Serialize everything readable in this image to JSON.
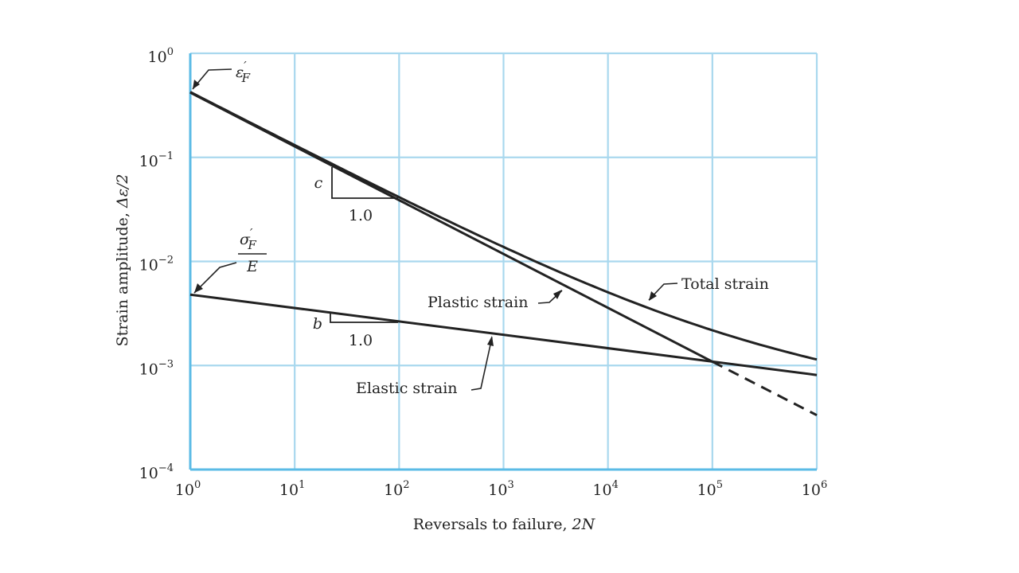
{
  "chart_data": {
    "type": "line",
    "x_scale": "log",
    "y_scale": "log",
    "xlim": [
      1,
      1000000
    ],
    "ylim": [
      0.0001,
      1
    ],
    "grid": true,
    "xlabel_text": "Reversals to failure, ",
    "xlabel_var": "2N",
    "ylabel_text": "Strain amplitude, ",
    "ylabel_var": "Δε/2",
    "x_ticks": [
      {
        "base": "10",
        "exp": "0"
      },
      {
        "base": "10",
        "exp": "1"
      },
      {
        "base": "10",
        "exp": "2"
      },
      {
        "base": "10",
        "exp": "3"
      },
      {
        "base": "10",
        "exp": "4"
      },
      {
        "base": "10",
        "exp": "5"
      },
      {
        "base": "10",
        "exp": "6"
      }
    ],
    "y_ticks": [
      {
        "base": "10",
        "exp": "0"
      },
      {
        "base": "10",
        "exp": "−1"
      },
      {
        "base": "10",
        "exp": "−2"
      },
      {
        "base": "10",
        "exp": "−3"
      },
      {
        "base": "10",
        "exp": "−4"
      }
    ],
    "series": [
      {
        "name": "Plastic strain",
        "role": "plastic",
        "x": [
          1,
          100000
        ],
        "y": [
          0.42,
          0.00109
        ],
        "dashed_extension": {
          "x": [
            100000,
            1000000
          ],
          "y": [
            0.00109,
            0.000333
          ]
        }
      },
      {
        "name": "Elastic strain",
        "role": "elastic",
        "x": [
          1,
          1000000
        ],
        "y": [
          0.0048,
          0.00081
        ]
      },
      {
        "name": "Total strain",
        "role": "total",
        "x": [
          1,
          10,
          100,
          1000,
          10000,
          100000,
          1000000
        ],
        "y": [
          0.4248,
          0.1203,
          0.042,
          0.0136,
          0.00542,
          0.00234,
          0.00114
        ]
      }
    ],
    "annotations": {
      "eps_f": {
        "symbol": "ε",
        "prime": "′",
        "sub": "F"
      },
      "sigma_f": {
        "symbol": "σ",
        "prime": "′",
        "sub": "F",
        "denominator": "E"
      },
      "slope_c": {
        "label": "c",
        "run_label": "1.0"
      },
      "slope_b": {
        "label": "b",
        "run_label": "1.0"
      },
      "plastic_label": "Plastic strain",
      "elastic_label": "Elastic strain",
      "total_label": "Total strain"
    }
  }
}
